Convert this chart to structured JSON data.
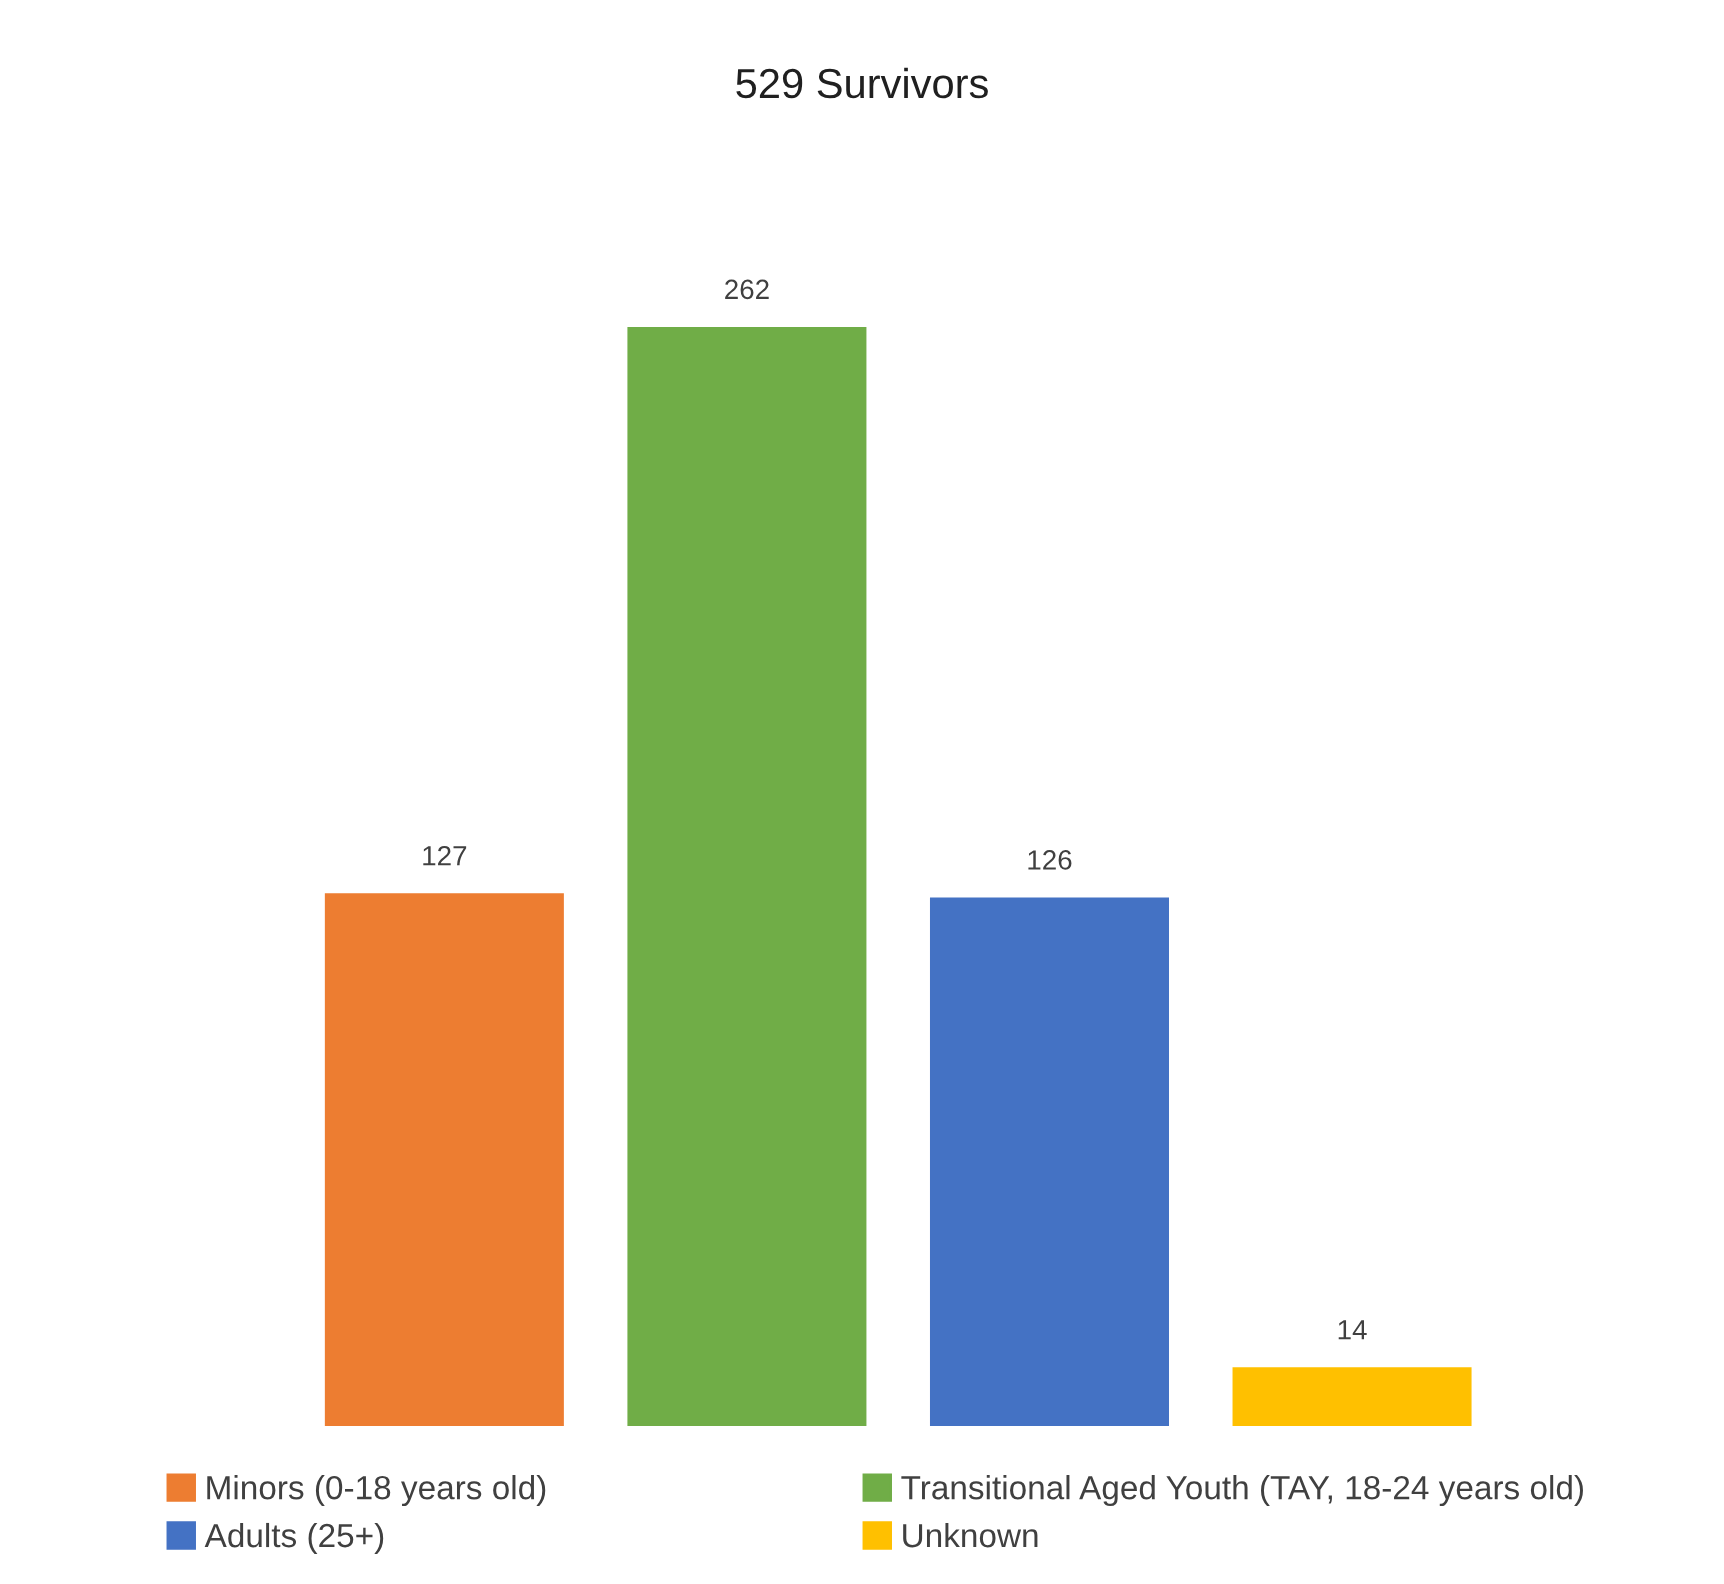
{
  "chart_data": {
    "type": "bar",
    "title": "529 Survivors",
    "categories": [
      null,
      null,
      null,
      null
    ],
    "series": [
      {
        "name": "Minors (0-18 years old)",
        "color": "#ed7d31",
        "values": [
          127,
          null,
          null,
          null
        ]
      },
      {
        "name": "Transitional Aged Youth (TAY, 18-24 years old)",
        "color": "#70ad47",
        "values": [
          null,
          262,
          null,
          null
        ]
      },
      {
        "name": "Adults (25+)",
        "color": "#4472c4",
        "values": [
          null,
          null,
          126,
          null
        ]
      },
      {
        "name": "Unknown",
        "color": "#ffc000",
        "values": [
          null,
          null,
          null,
          14
        ]
      }
    ],
    "stacked": true,
    "data_labels": true,
    "legend": "bottom"
  }
}
